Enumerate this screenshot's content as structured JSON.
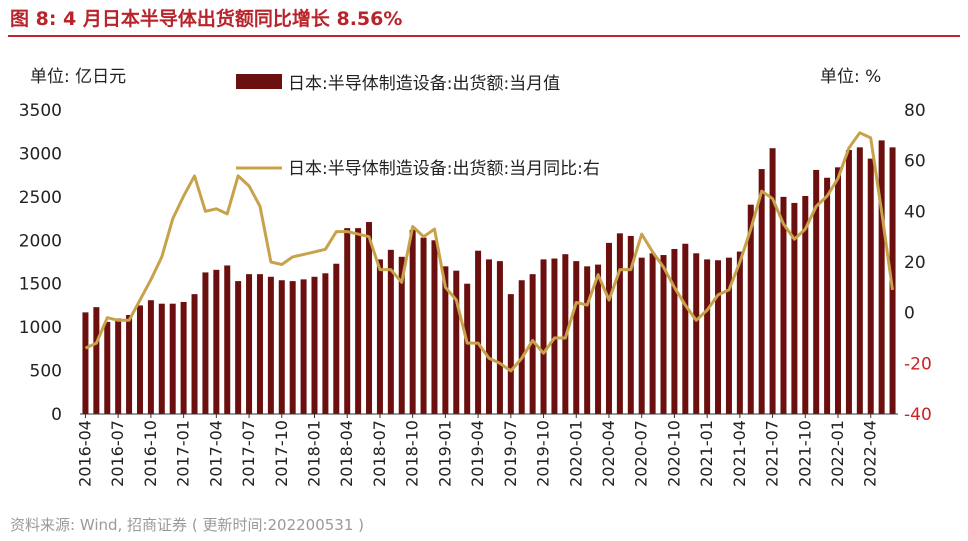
{
  "title": "图 8:  4 月日本半导体出货额同比增长 8.56%",
  "source": "资料来源: Wind, 招商证券 ( 更新时间:202200531 )",
  "colors": {
    "bar": "#6b0f0f",
    "line": "#c8a24a",
    "title": "#b8242a",
    "text": "#222222"
  },
  "chart_data": {
    "type": "bar+line",
    "left_unit_label": "单位:  亿日元",
    "right_unit_label": "单位:  %",
    "y_left": {
      "min": 0,
      "max": 3500,
      "ticks": [
        0,
        500,
        1000,
        1500,
        2000,
        2500,
        3000,
        3500
      ]
    },
    "y_right": {
      "min": -40,
      "max": 80,
      "ticks": [
        -40,
        -20,
        0,
        20,
        40,
        60,
        80
      ]
    },
    "x_tick_labels": [
      "2016-04",
      "2016-07",
      "2016-10",
      "2017-01",
      "2017-04",
      "2017-07",
      "2017-10",
      "2018-01",
      "2018-04",
      "2018-07",
      "2018-10",
      "2019-01",
      "2019-04",
      "2019-07",
      "2019-10",
      "2020-01",
      "2020-04",
      "2020-07",
      "2020-10",
      "2021-01",
      "2021-04",
      "2021-07",
      "2021-10",
      "2022-01",
      "2022-04"
    ],
    "series": [
      {
        "name": "日本:半导体制造设备:出货额:当月值",
        "type": "bar",
        "axis": "left",
        "values": [
          1170,
          1230,
          1060,
          1100,
          1140,
          1250,
          1310,
          1270,
          1270,
          1290,
          1380,
          1630,
          1660,
          1710,
          1530,
          1610,
          1610,
          1580,
          1540,
          1530,
          1550,
          1580,
          1620,
          1730,
          2140,
          2140,
          2210,
          1780,
          1890,
          1810,
          2120,
          2030,
          2000,
          1700,
          1650,
          1500,
          1880,
          1780,
          1760,
          1380,
          1540,
          1610,
          1780,
          1790,
          1840,
          1760,
          1700,
          1720,
          1970,
          2080,
          2050,
          1800,
          1850,
          1830,
          1900,
          1960,
          1850,
          1780,
          1770,
          1800,
          1870,
          2410,
          2820,
          3060,
          2500,
          2430,
          2510,
          2810,
          2720,
          2840,
          3040,
          3070,
          2940,
          3150,
          3070
        ]
      },
      {
        "name": "日本:半导体制造设备:出货额:当月同比:右",
        "type": "line",
        "axis": "right",
        "values": [
          -14,
          -12,
          -2,
          -3,
          -3,
          5,
          13,
          22,
          37,
          46,
          54,
          40,
          41,
          39,
          54,
          50,
          42,
          20,
          19,
          22,
          23,
          24,
          25,
          32,
          32,
          31,
          30,
          17,
          17,
          12,
          34,
          30,
          33,
          10,
          5,
          -12,
          -12,
          -18,
          -20,
          -23,
          -18,
          -11,
          -16,
          -10,
          -10,
          4,
          3,
          15,
          5,
          17,
          17,
          31,
          24,
          18,
          10,
          3,
          -3,
          1,
          7,
          9,
          20,
          33,
          48,
          45,
          35,
          29,
          33,
          42,
          46,
          53,
          65,
          71,
          69,
          40,
          9
        ]
      }
    ]
  }
}
